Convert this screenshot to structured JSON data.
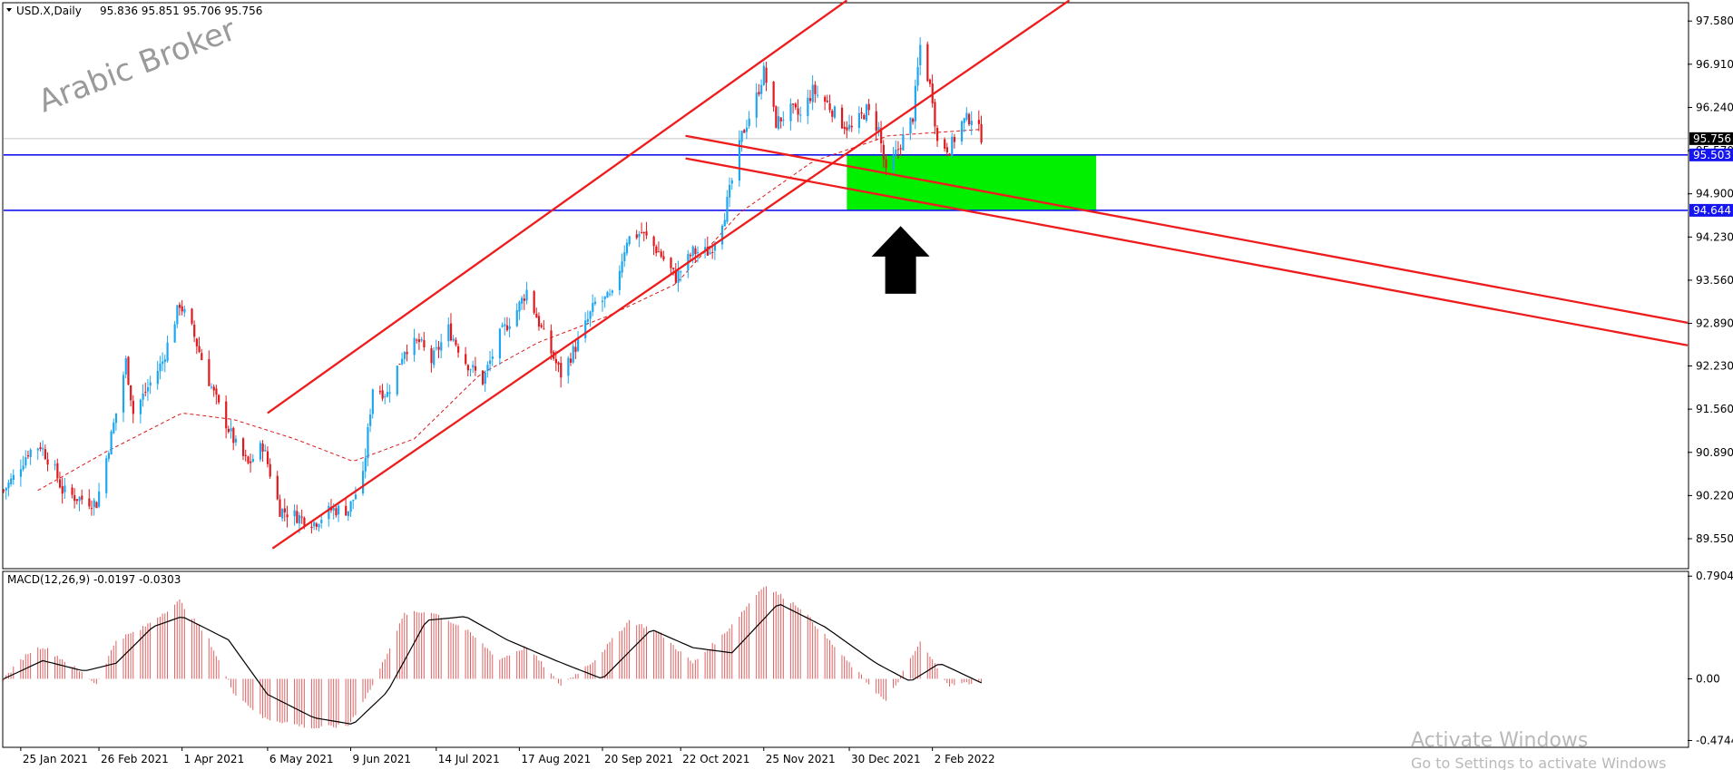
{
  "header": {
    "symbol_label": "USD.X,Daily",
    "ohlc_label": "95.836 95.851 95.706 95.756",
    "indicator_label": "MACD(12,26,9) -0.0197 -0.0303"
  },
  "watermark": "Arabic Broker",
  "activate_windows": {
    "title": "Activate Windows",
    "subtitle": "Go to Settings to activate Windows"
  },
  "colors": {
    "bull": "#1ea7f0",
    "bear": "#e0191e",
    "channel": "#ee1c1c",
    "support": "#1515f0",
    "zone": "#00f000",
    "ma": "#dc1a1a",
    "macd_hist": "#e06060",
    "macd_signal": "#000000",
    "current_price_bg": "#000000",
    "level_bg": "#1515f0"
  },
  "chart_data": [
    {
      "type": "candlestick",
      "symbol": "USD.X",
      "timeframe": "Daily",
      "price_axis_ticks": [
        "97.580",
        "96.910",
        "96.240",
        "95.570",
        "94.900",
        "94.230",
        "93.560",
        "92.890",
        "92.230",
        "91.560",
        "90.890",
        "90.220",
        "89.550"
      ],
      "y_range": [
        89.1,
        97.85
      ],
      "date_ticks": [
        "25 Jan 2021",
        "26 Feb 2021",
        "1 Apr 2021",
        "6 May 2021",
        "9 Jun 2021",
        "14 Jul 2021",
        "17 Aug 2021",
        "20 Sep 2021",
        "22 Oct 2021",
        "25 Nov 2021",
        "30 Dec 2021",
        "2 Feb 2022"
      ],
      "x_range": [
        "2021-01-18",
        "2022-12-08"
      ],
      "current_price": "95.756",
      "levels": [
        "95.503",
        "94.644"
      ],
      "anchors": [
        [
          "2021-01-18",
          90.3
        ],
        [
          "2021-01-22",
          90.5
        ],
        [
          "2021-01-28",
          90.9
        ],
        [
          "2021-02-02",
          91.0
        ],
        [
          "2021-02-08",
          90.6
        ],
        [
          "2021-02-11",
          90.3
        ],
        [
          "2021-02-16",
          90.2
        ],
        [
          "2021-02-25",
          90.1
        ],
        [
          "2021-03-05",
          91.5
        ],
        [
          "2021-03-09",
          92.3
        ],
        [
          "2021-03-12",
          91.5
        ],
        [
          "2021-03-18",
          91.9
        ],
        [
          "2021-03-24",
          92.3
        ],
        [
          "2021-03-31",
          93.2
        ],
        [
          "2021-04-05",
          92.8
        ],
        [
          "2021-04-12",
          92.0
        ],
        [
          "2021-04-16",
          91.6
        ],
        [
          "2021-04-23",
          91.0
        ],
        [
          "2021-04-28",
          90.7
        ],
        [
          "2021-05-04",
          91.0
        ],
        [
          "2021-05-11",
          90.0
        ],
        [
          "2021-05-18",
          89.9
        ],
        [
          "2021-05-25",
          89.8
        ],
        [
          "2021-06-01",
          90.0
        ],
        [
          "2021-06-08",
          90.0
        ],
        [
          "2021-06-14",
          90.5
        ],
        [
          "2021-06-18",
          91.9
        ],
        [
          "2021-06-24",
          91.8
        ],
        [
          "2021-07-01",
          92.5
        ],
        [
          "2021-07-07",
          92.6
        ],
        [
          "2021-07-12",
          92.3
        ],
        [
          "2021-07-19",
          92.8
        ],
        [
          "2021-07-26",
          92.3
        ],
        [
          "2021-08-02",
          92.0
        ],
        [
          "2021-08-09",
          92.7
        ],
        [
          "2021-08-16",
          93.1
        ],
        [
          "2021-08-20",
          93.4
        ],
        [
          "2021-08-27",
          92.7
        ],
        [
          "2021-09-03",
          92.1
        ],
        [
          "2021-09-10",
          92.6
        ],
        [
          "2021-09-17",
          93.2
        ],
        [
          "2021-09-24",
          93.3
        ],
        [
          "2021-09-30",
          94.2
        ],
        [
          "2021-10-06",
          94.3
        ],
        [
          "2021-10-13",
          94.0
        ],
        [
          "2021-10-20",
          93.6
        ],
        [
          "2021-10-27",
          94.0
        ],
        [
          "2021-11-03",
          94.0
        ],
        [
          "2021-11-09",
          94.6
        ],
        [
          "2021-11-12",
          95.1
        ],
        [
          "2021-11-16",
          95.8
        ],
        [
          "2021-11-22",
          96.4
        ],
        [
          "2021-11-25",
          96.8
        ],
        [
          "2021-11-30",
          96.0
        ],
        [
          "2021-12-06",
          96.2
        ],
        [
          "2021-12-10",
          96.1
        ],
        [
          "2021-12-15",
          96.5
        ],
        [
          "2021-12-21",
          96.3
        ],
        [
          "2021-12-27",
          96.0
        ],
        [
          "2021-12-31",
          95.9
        ],
        [
          "2022-01-06",
          96.2
        ],
        [
          "2022-01-11",
          95.9
        ],
        [
          "2022-01-14",
          95.2
        ],
        [
          "2022-01-19",
          95.6
        ],
        [
          "2022-01-25",
          96.1
        ],
        [
          "2022-01-28",
          97.2
        ],
        [
          "2022-02-02",
          96.4
        ],
        [
          "2022-02-04",
          95.7
        ],
        [
          "2022-02-09",
          95.6
        ],
        [
          "2022-02-14",
          96.0
        ],
        [
          "2022-02-18",
          96.1
        ],
        [
          "2022-02-22",
          95.8
        ]
      ],
      "moving_average_anchors": [
        [
          "2021-02-01",
          90.3
        ],
        [
          "2021-03-01",
          90.9
        ],
        [
          "2021-04-01",
          91.5
        ],
        [
          "2021-04-22",
          91.4
        ],
        [
          "2021-05-17",
          91.1
        ],
        [
          "2021-06-10",
          90.75
        ],
        [
          "2021-07-05",
          91.1
        ],
        [
          "2021-08-01",
          92.1
        ],
        [
          "2021-08-25",
          92.6
        ],
        [
          "2021-09-22",
          93.0
        ],
        [
          "2021-10-20",
          93.5
        ],
        [
          "2021-11-15",
          94.6
        ],
        [
          "2021-12-15",
          95.4
        ],
        [
          "2022-01-15",
          95.8
        ],
        [
          "2022-02-22",
          95.9
        ]
      ],
      "trend_lines": [
        {
          "name": "channel-upper",
          "from": [
            "2021-05-06",
            91.5
          ],
          "to": [
            "2021-12-29",
            97.9
          ]
        },
        {
          "name": "channel-lower",
          "from": [
            "2021-05-08",
            89.4
          ],
          "to": [
            "2022-03-30",
            97.9
          ]
        },
        {
          "name": "down-upper",
          "from": [
            "2021-10-24",
            95.8
          ],
          "to": [
            "2022-12-08",
            92.9
          ]
        },
        {
          "name": "down-lower",
          "from": [
            "2021-10-24",
            95.45
          ],
          "to": [
            "2022-12-08",
            92.55
          ]
        }
      ],
      "zone": {
        "from": "2021-12-29",
        "to": "2022-04-10",
        "low": 94.644,
        "high": 95.503
      },
      "arrow": {
        "date": "2022-01-20",
        "tip": 94.4,
        "base": 93.35,
        "direction": "up"
      }
    },
    {
      "type": "macd",
      "label": "MACD(12,26,9)",
      "values": [
        "-0.0197",
        "-0.0303"
      ],
      "axis_ticks": [
        "0.7904",
        "0.00",
        "-0.4744"
      ],
      "y_range": [
        -0.52,
        0.82
      ],
      "histogram_anchors": [
        [
          "2021-01-18",
          0.0
        ],
        [
          "2021-01-28",
          0.2
        ],
        [
          "2021-02-03",
          0.25
        ],
        [
          "2021-02-15",
          0.1
        ],
        [
          "2021-02-25",
          -0.04
        ],
        [
          "2021-03-05",
          0.3
        ],
        [
          "2021-03-15",
          0.38
        ],
        [
          "2021-03-31",
          0.6
        ],
        [
          "2021-04-12",
          0.3
        ],
        [
          "2021-04-22",
          -0.1
        ],
        [
          "2021-05-04",
          -0.3
        ],
        [
          "2021-05-25",
          -0.38
        ],
        [
          "2021-06-08",
          -0.36
        ],
        [
          "2021-06-18",
          -0.05
        ],
        [
          "2021-07-01",
          0.5
        ],
        [
          "2021-07-12",
          0.52
        ],
        [
          "2021-07-26",
          0.38
        ],
        [
          "2021-08-09",
          0.15
        ],
        [
          "2021-08-20",
          0.25
        ],
        [
          "2021-09-03",
          -0.05
        ],
        [
          "2021-09-17",
          0.15
        ],
        [
          "2021-10-01",
          0.45
        ],
        [
          "2021-10-13",
          0.36
        ],
        [
          "2021-10-27",
          0.12
        ],
        [
          "2021-11-09",
          0.35
        ],
        [
          "2021-11-25",
          0.72
        ],
        [
          "2021-12-10",
          0.55
        ],
        [
          "2021-12-27",
          0.18
        ],
        [
          "2022-01-14",
          -0.18
        ],
        [
          "2022-01-28",
          0.28
        ],
        [
          "2022-02-09",
          -0.05
        ],
        [
          "2022-02-22",
          -0.02
        ]
      ],
      "signal_anchors": [
        [
          "2021-01-18",
          0.0
        ],
        [
          "2021-02-03",
          0.14
        ],
        [
          "2021-02-20",
          0.06
        ],
        [
          "2021-03-05",
          0.12
        ],
        [
          "2021-03-20",
          0.4
        ],
        [
          "2021-04-01",
          0.48
        ],
        [
          "2021-04-20",
          0.3
        ],
        [
          "2021-05-06",
          -0.12
        ],
        [
          "2021-05-25",
          -0.3
        ],
        [
          "2021-06-10",
          -0.35
        ],
        [
          "2021-06-24",
          -0.1
        ],
        [
          "2021-07-10",
          0.45
        ],
        [
          "2021-07-26",
          0.48
        ],
        [
          "2021-08-12",
          0.3
        ],
        [
          "2021-09-01",
          0.14
        ],
        [
          "2021-09-20",
          0.0
        ],
        [
          "2021-10-10",
          0.38
        ],
        [
          "2021-10-27",
          0.24
        ],
        [
          "2021-11-12",
          0.2
        ],
        [
          "2021-12-01",
          0.58
        ],
        [
          "2021-12-20",
          0.4
        ],
        [
          "2022-01-10",
          0.12
        ],
        [
          "2022-01-24",
          -0.02
        ],
        [
          "2022-02-05",
          0.12
        ],
        [
          "2022-02-22",
          -0.03
        ]
      ]
    }
  ]
}
